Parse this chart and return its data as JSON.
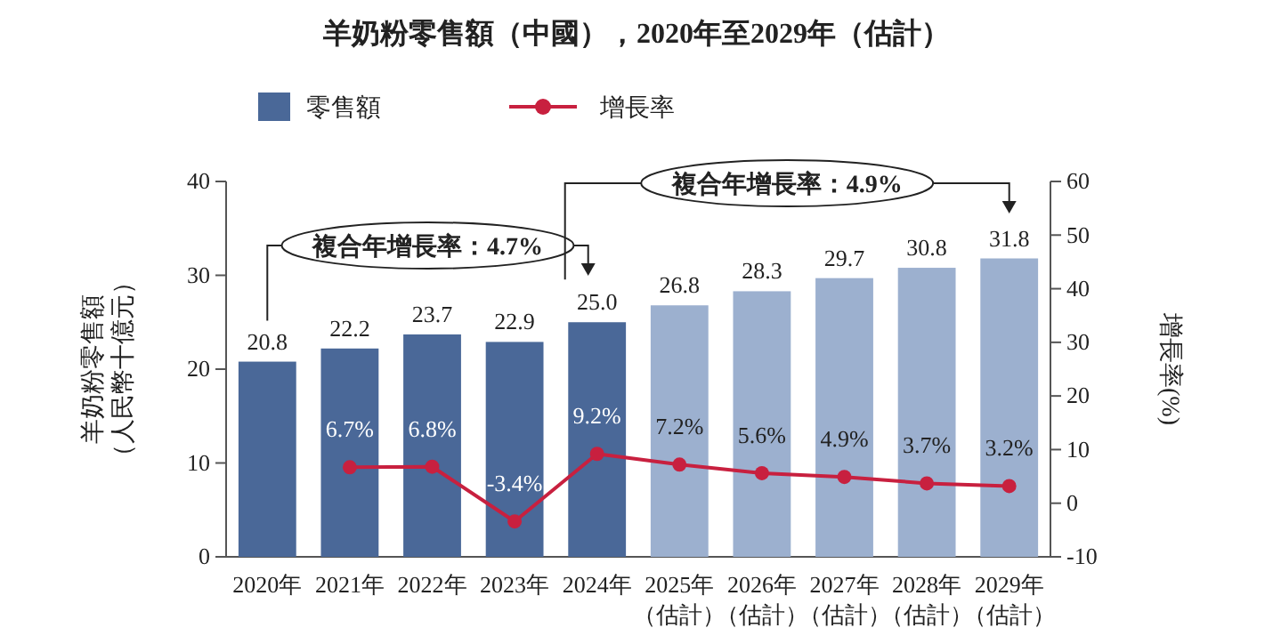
{
  "chart_data": {
    "type": "bar",
    "title": "羊奶粉零售額（中國），2020年至2029年（估計）",
    "categories": [
      "2020年",
      "2021年",
      "2022年",
      "2023年",
      "2024年",
      "2025年（估計）",
      "2026年（估計）",
      "2027年（估計）",
      "2028年（估計）",
      "2029年（估計）"
    ],
    "series": [
      {
        "name": "零售額",
        "color": "#4a6898",
        "colors": [
          "#4a6898",
          "#4a6898",
          "#4a6898",
          "#4a6898",
          "#4a6898",
          "#9cb0cf",
          "#9cb0cf",
          "#9cb0cf",
          "#9cb0cf",
          "#9cb0cf"
        ],
        "values": [
          20.8,
          22.2,
          23.7,
          22.9,
          25.0,
          26.8,
          28.3,
          29.7,
          30.8,
          31.8
        ],
        "value_labels": [
          "20.8",
          "22.2",
          "23.7",
          "22.9",
          "25.0",
          "26.8",
          "28.3",
          "29.7",
          "30.8",
          "31.8"
        ]
      },
      {
        "name": "增長率",
        "type": "line",
        "axis": "y2",
        "color": "#c8203f",
        "marker": "circle",
        "values": [
          null,
          6.7,
          6.8,
          -3.4,
          9.2,
          7.2,
          5.6,
          4.9,
          3.7,
          3.2
        ],
        "value_labels": [
          null,
          "6.7%",
          "6.8%",
          "-3.4%",
          "9.2%",
          "7.2%",
          "5.6%",
          "4.9%",
          "3.7%",
          "3.2%"
        ]
      }
    ],
    "ylabel": "羊奶粉零售額（人民幣十億元）",
    "y2label": "增長率(%)",
    "ylim": [
      0,
      40
    ],
    "yticks": [
      0,
      10,
      20,
      30,
      40
    ],
    "y2lim": [
      -10,
      60
    ],
    "y2ticks": [
      -10,
      0,
      10,
      20,
      30,
      40,
      50,
      60
    ],
    "annotations": [
      "複合年增長率：4.7%",
      "複合年增長率：4.9%"
    ],
    "legend": "top left",
    "grid": false
  }
}
